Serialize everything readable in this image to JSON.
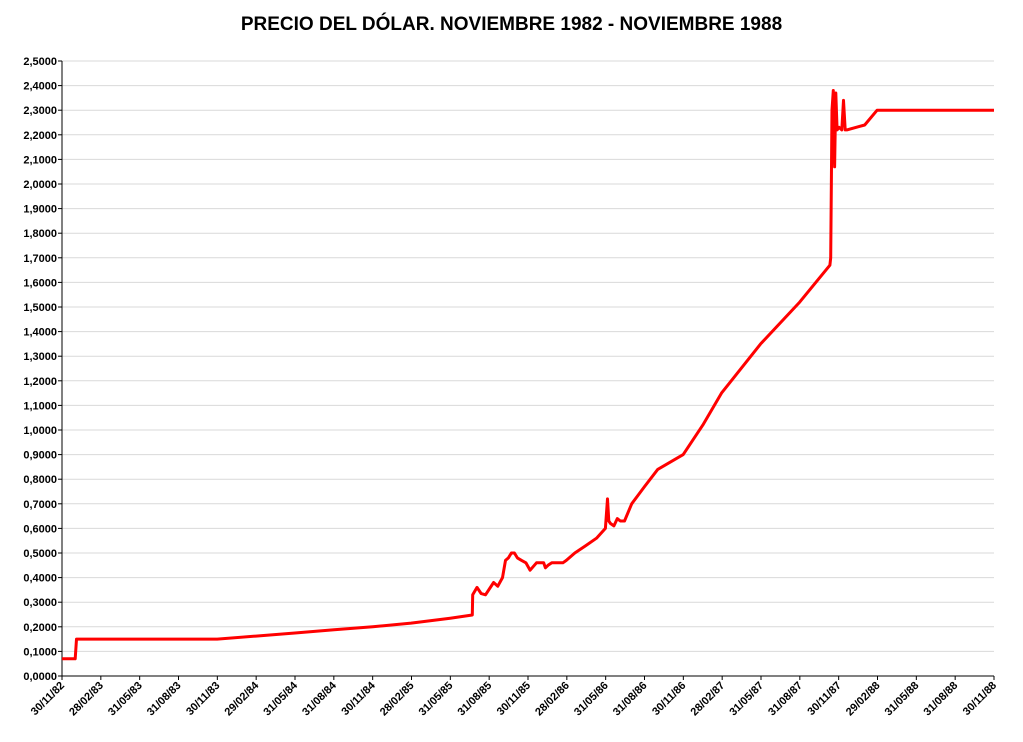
{
  "chart_data": {
    "type": "line",
    "title": "PRECIO DEL DÓLAR. NOVIEMBRE 1982 - NOVIEMBRE 1988",
    "xlabel": "",
    "ylabel": "",
    "ylim": [
      0,
      2.5
    ],
    "xlim": [
      "1982-11-30",
      "1988-11-30"
    ],
    "grid": "horizontal",
    "line_color": "#ff0000",
    "y_tick_labels": [
      "0,0000",
      "0,1000",
      "0,2000",
      "0,3000",
      "0,4000",
      "0,5000",
      "0,6000",
      "0,7000",
      "0,8000",
      "0,9000",
      "1,0000",
      "1,1000",
      "1,2000",
      "1,3000",
      "1,4000",
      "1,5000",
      "1,6000",
      "1,7000",
      "1,8000",
      "1,9000",
      "2,0000",
      "2,1000",
      "2,2000",
      "2,3000",
      "2,4000",
      "2,5000"
    ],
    "x_tick_labels": [
      "30/11/82",
      "28/02/83",
      "31/05/83",
      "31/08/83",
      "30/11/83",
      "29/02/84",
      "31/05/84",
      "31/08/84",
      "30/11/84",
      "28/02/85",
      "31/05/85",
      "31/08/85",
      "30/11/85",
      "28/02/86",
      "31/05/86",
      "31/08/86",
      "30/11/86",
      "28/02/87",
      "31/05/87",
      "31/08/87",
      "30/11/87",
      "29/02/88",
      "31/05/88",
      "31/08/88",
      "30/11/88"
    ],
    "series": [
      {
        "x": [
          "1982-11-30",
          "1982-12-25",
          "1982-12-31",
          "1983-01-03",
          "1983-02-28",
          "1983-05-31",
          "1983-08-31",
          "1983-11-30",
          "1984-02-29",
          "1984-05-31",
          "1984-08-31",
          "1984-11-30",
          "1985-02-28",
          "1985-05-31",
          "1985-07-22",
          "1985-07-23",
          "1985-08-02",
          "1985-08-12",
          "1985-08-22",
          "1985-09-10",
          "1985-09-20",
          "1985-10-01",
          "1985-10-08",
          "1985-10-15",
          "1985-10-22",
          "1985-10-29",
          "1985-11-05",
          "1985-11-15",
          "1985-11-25",
          "1985-12-05",
          "1985-12-20",
          "1986-01-06",
          "1986-01-10",
          "1986-01-16",
          "1986-01-25",
          "1986-02-10",
          "1986-02-20",
          "1986-02-28",
          "1986-03-20",
          "1986-04-15",
          "1986-05-10",
          "1986-05-31",
          "1986-06-05",
          "1986-06-08",
          "1986-06-12",
          "1986-06-20",
          "1986-06-28",
          "1986-07-05",
          "1986-07-15",
          "1986-08-01",
          "1986-08-31",
          "1986-10-01",
          "1986-11-30",
          "1987-01-15",
          "1987-02-28",
          "1987-05-31",
          "1987-08-31",
          "1987-11-10",
          "1987-11-12",
          "1987-11-15",
          "1987-11-18",
          "1987-11-21",
          "1987-11-24",
          "1987-11-27",
          "1987-12-02",
          "1987-12-08",
          "1987-12-12",
          "1987-12-16",
          "1987-12-20",
          "1988-01-10",
          "1988-01-31",
          "1988-02-29",
          "1988-05-31",
          "1988-08-31",
          "1988-11-30"
        ],
        "y": [
          0.07,
          0.07,
          0.07,
          0.15,
          0.15,
          0.15,
          0.15,
          0.15,
          0.162,
          0.175,
          0.188,
          0.2,
          0.215,
          0.235,
          0.248,
          0.33,
          0.36,
          0.335,
          0.33,
          0.38,
          0.365,
          0.4,
          0.47,
          0.48,
          0.5,
          0.5,
          0.48,
          0.47,
          0.46,
          0.43,
          0.46,
          0.46,
          0.44,
          0.45,
          0.46,
          0.46,
          0.46,
          0.47,
          0.5,
          0.53,
          0.56,
          0.6,
          0.72,
          0.63,
          0.62,
          0.61,
          0.64,
          0.63,
          0.63,
          0.7,
          0.77,
          0.84,
          0.9,
          1.02,
          1.15,
          1.35,
          1.52,
          1.67,
          1.7,
          2.3,
          2.38,
          2.07,
          2.37,
          2.22,
          2.23,
          2.22,
          2.34,
          2.22,
          2.22,
          2.23,
          2.24,
          2.3,
          2.3,
          2.3,
          2.3
        ]
      }
    ]
  }
}
